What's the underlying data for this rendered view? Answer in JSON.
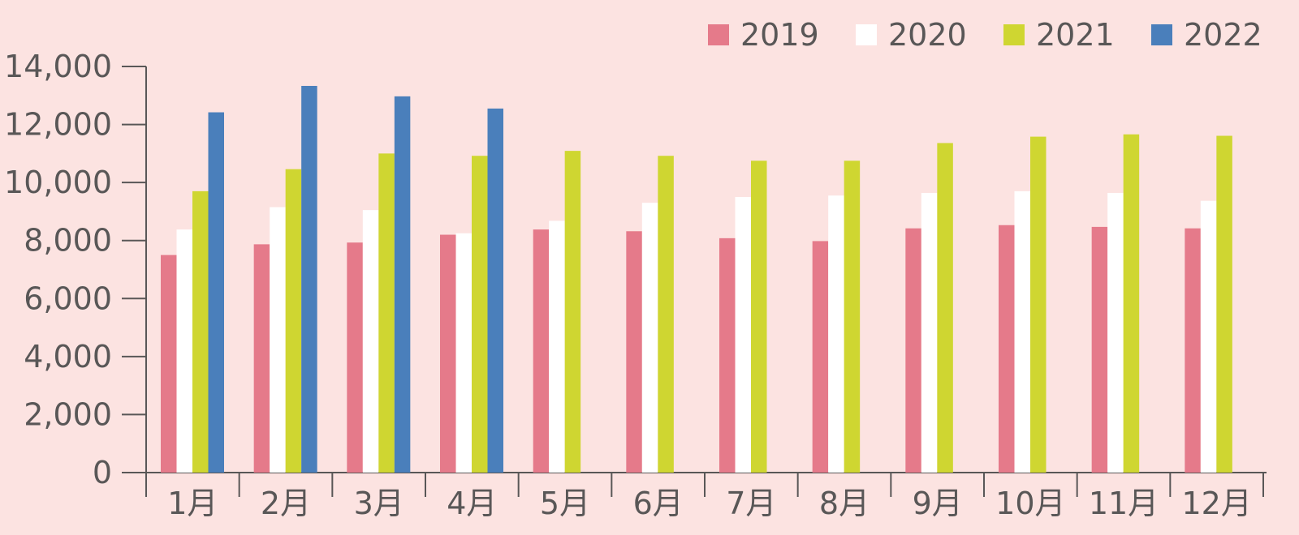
{
  "chart_data": {
    "type": "bar",
    "title": "",
    "xlabel": "",
    "ylabel": "",
    "categories": [
      "1月",
      "2月",
      "3月",
      "4月",
      "5月",
      "6月",
      "7月",
      "8月",
      "9月",
      "10月",
      "11月",
      "12月"
    ],
    "series": [
      {
        "name": "2019",
        "color": "#e57a8a",
        "values": [
          7500,
          7870,
          7930,
          8200,
          8380,
          8320,
          8080,
          7980,
          8420,
          8530,
          8470,
          8420
        ]
      },
      {
        "name": "2020",
        "color": "#ffffff",
        "values": [
          8380,
          9150,
          9050,
          8250,
          8680,
          9300,
          9500,
          9550,
          9640,
          9700,
          9640,
          9370
        ]
      },
      {
        "name": "2021",
        "color": "#cfd631",
        "values": [
          9700,
          10460,
          11000,
          10920,
          11090,
          10920,
          10750,
          10750,
          11360,
          11580,
          11660,
          11610
        ]
      },
      {
        "name": "2022",
        "color": "#4a7fbb",
        "values": [
          12420,
          13330,
          12970,
          12550,
          null,
          null,
          null,
          null,
          null,
          null,
          null,
          null
        ]
      }
    ],
    "ylim": [
      0,
      14000
    ],
    "yticks": [
      0,
      2000,
      4000,
      6000,
      8000,
      10000,
      12000,
      14000
    ],
    "ytick_labels": [
      "0",
      "2,000",
      "4,000",
      "6,000",
      "8,000",
      "10,000",
      "12,000",
      "14,000"
    ],
    "grid": false,
    "legend_position": "top-right",
    "axis_color": "#595757"
  }
}
